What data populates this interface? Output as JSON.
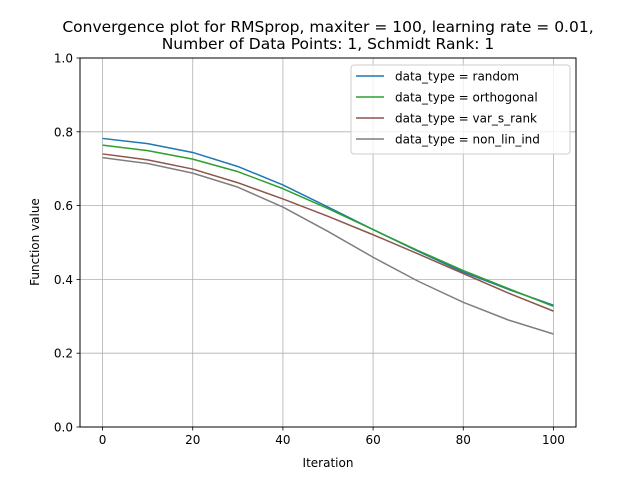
{
  "chart_data": {
    "type": "line",
    "title_line1": "Convergence plot for RMSprop, maxiter = 100, learning rate = 0.01,",
    "title_line2": "Number of Data Points: 1, Schmidt Rank: 1",
    "xlabel": "Iteration",
    "ylabel": "Function value",
    "xlim": [
      -5,
      105
    ],
    "ylim": [
      0.0,
      1.0
    ],
    "xticks": [
      0,
      20,
      40,
      60,
      80,
      100
    ],
    "yticks": [
      0.0,
      0.2,
      0.4,
      0.6,
      0.8,
      1.0
    ],
    "xtick_labels": [
      "0",
      "20",
      "40",
      "60",
      "80",
      "100"
    ],
    "ytick_labels": [
      "0.0",
      "0.2",
      "0.4",
      "0.6",
      "0.8",
      "1.0"
    ],
    "grid": true,
    "legend_position": "top-right",
    "x": [
      0,
      10,
      20,
      30,
      40,
      50,
      60,
      70,
      80,
      90,
      100
    ],
    "series": [
      {
        "name": "data_type = random",
        "color": "#1f77b4",
        "values": [
          0.782,
          0.768,
          0.744,
          0.706,
          0.656,
          0.596,
          0.535,
          0.476,
          0.42,
          0.373,
          0.33
        ]
      },
      {
        "name": "data_type = orthogonal",
        "color": "#2ca02c",
        "values": [
          0.764,
          0.749,
          0.726,
          0.692,
          0.646,
          0.592,
          0.535,
          0.478,
          0.424,
          0.375,
          0.327
        ]
      },
      {
        "name": "data_type = var_s_rank",
        "color": "#8c564b",
        "values": [
          0.74,
          0.724,
          0.699,
          0.662,
          0.618,
          0.571,
          0.521,
          0.469,
          0.416,
          0.363,
          0.314
        ]
      },
      {
        "name": "data_type = non_lin_ind",
        "color": "#7f7f7f",
        "values": [
          0.73,
          0.714,
          0.688,
          0.65,
          0.596,
          0.53,
          0.46,
          0.395,
          0.338,
          0.29,
          0.252
        ]
      }
    ]
  }
}
